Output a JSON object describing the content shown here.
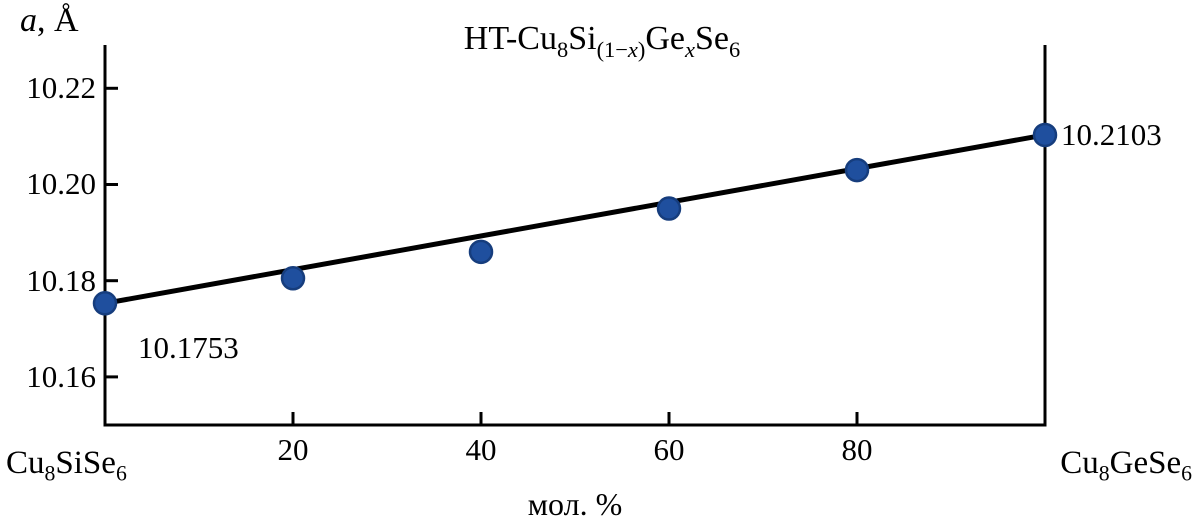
{
  "figure": {
    "title_segments": [
      {
        "text": "HT-Cu"
      },
      {
        "text": "8",
        "sub": true
      },
      {
        "text": "Si"
      },
      {
        "text": "(1−",
        "sub": true
      },
      {
        "text": "x",
        "sub": true,
        "italic": true
      },
      {
        "text": ")",
        "sub": true
      },
      {
        "text": "Ge"
      },
      {
        "text": "x",
        "sub": true,
        "italic": true
      },
      {
        "text": "Se"
      },
      {
        "text": "6",
        "sub": true
      }
    ],
    "ylabel_segments": [
      {
        "text": "a",
        "italic": true
      },
      {
        "text": ", Å"
      }
    ],
    "xlabel": "мол. %",
    "left_endpoint_segments": [
      {
        "text": "Cu"
      },
      {
        "text": "8",
        "sub": true
      },
      {
        "text": "SiSe"
      },
      {
        "text": "6",
        "sub": true
      }
    ],
    "right_endpoint_segments": [
      {
        "text": "Cu"
      },
      {
        "text": "8",
        "sub": true
      },
      {
        "text": "GeSe"
      },
      {
        "text": "6",
        "sub": true
      }
    ]
  },
  "chart_data": {
    "type": "scatter-line",
    "title": "HT-Cu₈Si₍₁₋ₓ₎GeₓSe₆",
    "xlabel": "мол. %",
    "ylabel": "a, Å",
    "x_endpoint_labels": {
      "left": "Cu₈SiSe₆",
      "right": "Cu₈GeSe₆"
    },
    "x": [
      0,
      20,
      40,
      60,
      80,
      100
    ],
    "values": [
      10.1753,
      10.1805,
      10.186,
      10.195,
      10.203,
      10.2103
    ],
    "xlim": [
      0,
      100
    ],
    "ylim": [
      10.15,
      10.229
    ],
    "x_ticks": [
      {
        "value": 20,
        "label": "20"
      },
      {
        "value": 40,
        "label": "40"
      },
      {
        "value": 60,
        "label": "60"
      },
      {
        "value": 80,
        "label": "80"
      }
    ],
    "y_ticks": [
      {
        "value": 10.16,
        "label": "10.16"
      },
      {
        "value": 10.18,
        "label": "10.18"
      },
      {
        "value": 10.2,
        "label": "10.20"
      },
      {
        "value": 10.22,
        "label": "10.22"
      }
    ],
    "annotations": [
      {
        "text": "10.1753",
        "x": 0,
        "y": 10.1753,
        "placement": "below-right"
      },
      {
        "text": "10.2103",
        "x": 100,
        "y": 10.2103,
        "placement": "right"
      }
    ],
    "point_color": "#1f4f9e",
    "point_edge_color": "#163d7d",
    "line_color": "#000000",
    "axis_color": "#000000",
    "grid": false,
    "legend": "none"
  }
}
